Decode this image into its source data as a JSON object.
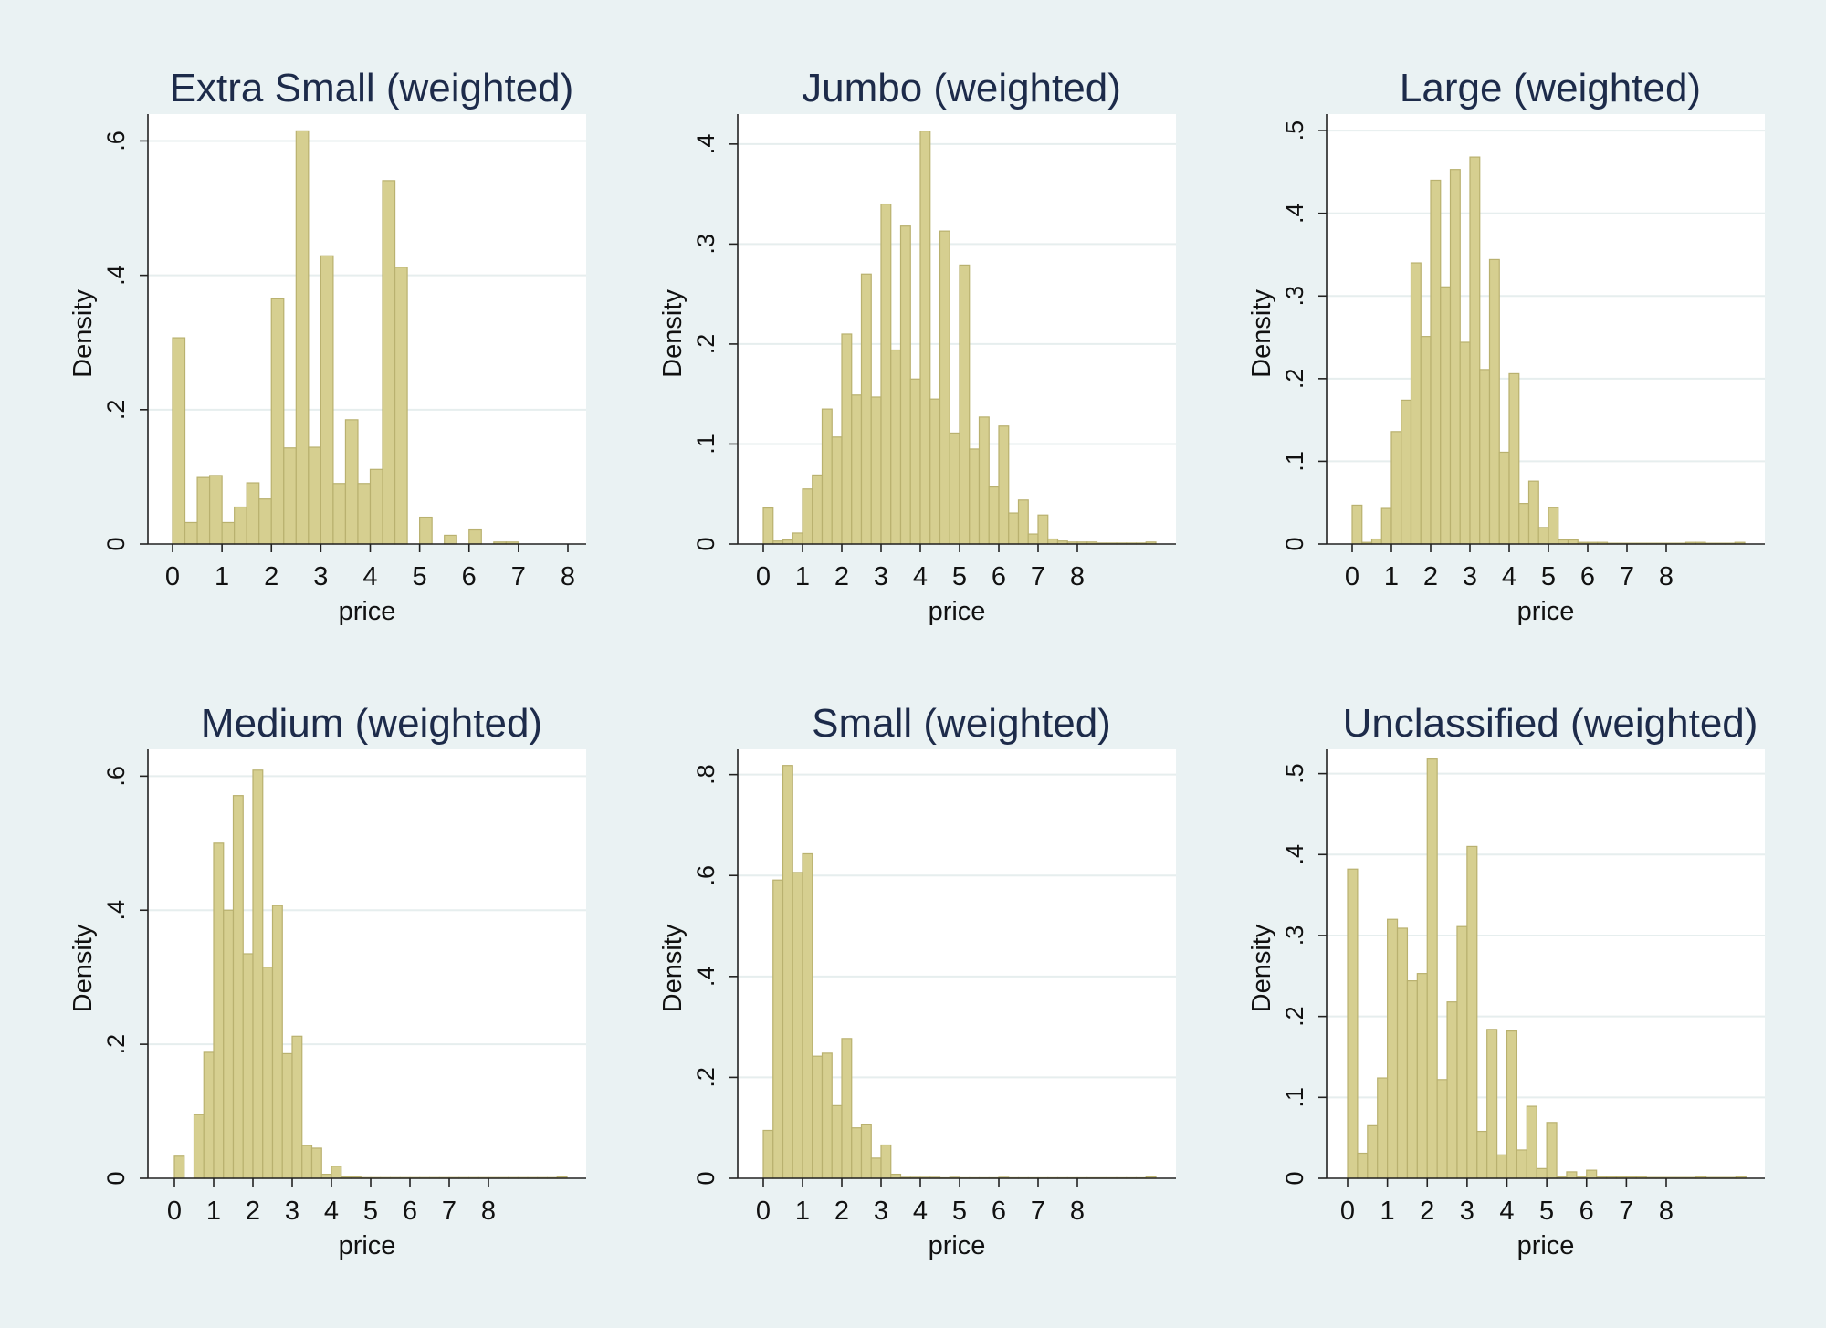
{
  "chart_data": [
    {
      "type": "bar",
      "title": "Extra Small (weighted)",
      "xlabel": "price",
      "ylabel": "Density",
      "xlim": [
        0,
        8.2
      ],
      "ylim": [
        0,
        0.64
      ],
      "xticks": [
        0,
        1,
        2,
        3,
        4,
        5,
        6,
        7,
        8
      ],
      "yticks": [
        0,
        0.2,
        0.4,
        0.6
      ],
      "ytick_labels": [
        "0",
        ".2",
        ".4",
        ".6"
      ],
      "bin_width": 0.25,
      "values": [
        0.307,
        0.032,
        0.099,
        0.102,
        0.032,
        0.055,
        0.091,
        0.067,
        0.365,
        0.143,
        0.615,
        0.144,
        0.429,
        0.09,
        0.185,
        0.09,
        0.111,
        0.541,
        0.412,
        0,
        0.04,
        0,
        0.013,
        0,
        0.021,
        0,
        0.003,
        0.003,
        0,
        0,
        0,
        0,
        0
      ]
    },
    {
      "type": "bar",
      "title": "Jumbo (weighted)",
      "xlabel": "price",
      "ylabel": "Density",
      "xlim": [
        0,
        10
      ],
      "ylim": [
        0,
        0.43
      ],
      "xticks": [
        0,
        1,
        2,
        3,
        4,
        5,
        6,
        7,
        8
      ],
      "yticks": [
        0,
        0.1,
        0.2,
        0.3,
        0.4
      ],
      "ytick_labels": [
        "0",
        ".1",
        ".2",
        ".3",
        ".4"
      ],
      "bin_width": 0.25,
      "values": [
        0.036,
        0.003,
        0.004,
        0.011,
        0.055,
        0.069,
        0.135,
        0.107,
        0.21,
        0.149,
        0.27,
        0.147,
        0.34,
        0.194,
        0.318,
        0.165,
        0.413,
        0.145,
        0.313,
        0.111,
        0.279,
        0.095,
        0.127,
        0.057,
        0.118,
        0.031,
        0.044,
        0.01,
        0.029,
        0.005,
        0.003,
        0.002,
        0.002,
        0.002,
        0.001,
        0.001,
        0.001,
        0.001,
        0.001,
        0.002
      ]
    },
    {
      "type": "bar",
      "title": "Large (weighted)",
      "xlabel": "price",
      "ylabel": "Density",
      "xlim": [
        0,
        10
      ],
      "ylim": [
        0,
        0.52
      ],
      "xticks": [
        0,
        1,
        2,
        3,
        4,
        5,
        6,
        7,
        8
      ],
      "yticks": [
        0,
        0.1,
        0.2,
        0.3,
        0.4,
        0.5
      ],
      "ytick_labels": [
        "0",
        ".1",
        ".2",
        ".3",
        ".4",
        ".5"
      ],
      "bin_width": 0.25,
      "values": [
        0.047,
        0.002,
        0.006,
        0.043,
        0.136,
        0.174,
        0.34,
        0.251,
        0.44,
        0.311,
        0.453,
        0.244,
        0.468,
        0.211,
        0.344,
        0.111,
        0.206,
        0.049,
        0.076,
        0.02,
        0.044,
        0.005,
        0.005,
        0.002,
        0.002,
        0.002,
        0.001,
        0.001,
        0.001,
        0.001,
        0.001,
        0.001,
        0.001,
        0.001,
        0.002,
        0.002,
        0.001,
        0.001,
        0.001,
        0.002
      ]
    },
    {
      "type": "bar",
      "title": "Medium (weighted)",
      "xlabel": "price",
      "ylabel": "Density",
      "xlim": [
        0,
        10
      ],
      "ylim": [
        0,
        0.64
      ],
      "xticks": [
        0,
        1,
        2,
        3,
        4,
        5,
        6,
        7,
        8
      ],
      "yticks": [
        0,
        0.2,
        0.4,
        0.6
      ],
      "ytick_labels": [
        "0",
        ".2",
        ".4",
        ".6"
      ],
      "bin_width": 0.25,
      "values": [
        0.033,
        0,
        0.095,
        0.188,
        0.5,
        0.4,
        0.571,
        0.335,
        0.609,
        0.315,
        0.407,
        0.186,
        0.212,
        0.049,
        0.045,
        0.006,
        0.018,
        0.002,
        0.002,
        0.001,
        0.001,
        0.001,
        0.001,
        0.001,
        0.001,
        0.001,
        0.001,
        0.001,
        0.001,
        0.001,
        0.001,
        0.001,
        0.001,
        0.001,
        0.001,
        0.001,
        0.001,
        0.001,
        0.001,
        0.002
      ]
    },
    {
      "type": "bar",
      "title": "Small (weighted)",
      "xlabel": "price",
      "ylabel": "Density",
      "xlim": [
        0,
        10
      ],
      "ylim": [
        0,
        0.85
      ],
      "xticks": [
        0,
        1,
        2,
        3,
        4,
        5,
        6,
        7,
        8
      ],
      "yticks": [
        0,
        0.2,
        0.4,
        0.6,
        0.8
      ],
      "ytick_labels": [
        "0",
        ".2",
        ".4",
        ".6",
        ".8"
      ],
      "bin_width": 0.25,
      "values": [
        0.095,
        0.591,
        0.818,
        0.606,
        0.643,
        0.242,
        0.248,
        0.144,
        0.277,
        0.1,
        0.106,
        0.04,
        0.066,
        0.008,
        0.002,
        0.002,
        0.002,
        0.002,
        0.001,
        0.002,
        0.001,
        0.001,
        0.001,
        0.001,
        0.002,
        0.001,
        0.001,
        0.001,
        0.001,
        0.001,
        0.001,
        0.001,
        0.001,
        0.001,
        0.001,
        0.001,
        0.001,
        0.001,
        0.001,
        0.003
      ]
    },
    {
      "type": "bar",
      "title": "Unclassified (weighted)",
      "xlabel": "price",
      "ylabel": "Density",
      "xlim": [
        0,
        10
      ],
      "ylim": [
        0,
        0.53
      ],
      "xticks": [
        0,
        1,
        2,
        3,
        4,
        5,
        6,
        7,
        8
      ],
      "yticks": [
        0,
        0.1,
        0.2,
        0.3,
        0.4,
        0.5
      ],
      "ytick_labels": [
        "0",
        ".1",
        ".2",
        ".3",
        ".4",
        ".5"
      ],
      "bin_width": 0.25,
      "values": [
        0.382,
        0.031,
        0.065,
        0.124,
        0.32,
        0.309,
        0.244,
        0.253,
        0.518,
        0.122,
        0.218,
        0.311,
        0.41,
        0.058,
        0.184,
        0.029,
        0.182,
        0.035,
        0.089,
        0.012,
        0.069,
        0.002,
        0.008,
        0.002,
        0.01,
        0.002,
        0.002,
        0.002,
        0.002,
        0.002,
        0.001,
        0.001,
        0.001,
        0.001,
        0.001,
        0.002,
        0.001,
        0.001,
        0.001,
        0.002
      ]
    }
  ],
  "colors": {
    "background": "#eaf2f3",
    "plot_background": "#ffffff",
    "bar_fill": "#d6cf90",
    "bar_stroke": "#b9b16f",
    "grid": "#e6eeee",
    "title": "#1d2b4a",
    "axis": "#222222"
  }
}
